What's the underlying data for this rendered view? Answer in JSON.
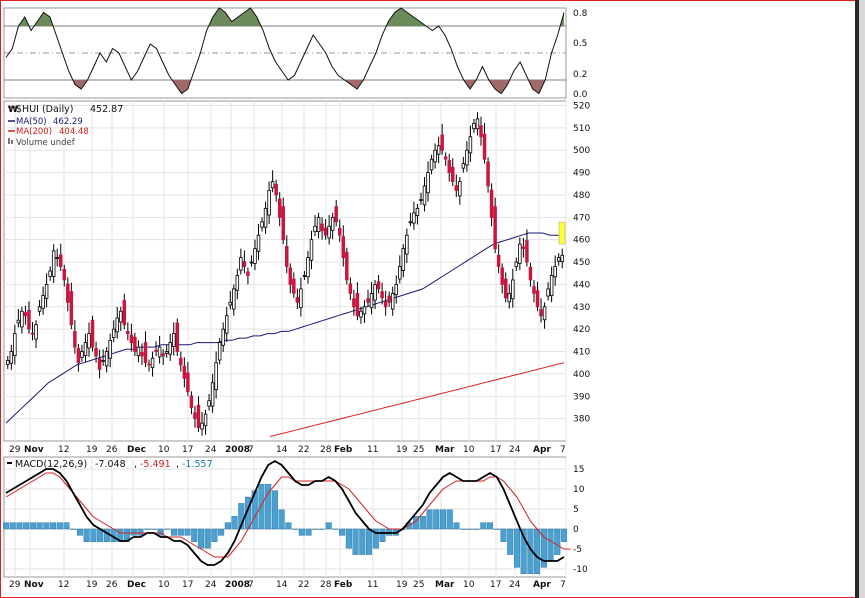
{
  "colors": {
    "down": "#c8173f",
    "up_fill": "#ffffff",
    "ma50": "#1a1a7a",
    "ma200": "#d42020",
    "macd_line": "#000000",
    "signal_line": "#d42020",
    "histogram": "#4aa0d0",
    "rsi_over": "#6b8c5a",
    "rsi_under": "#a06a6a",
    "highlight": "#ffff33"
  },
  "rsi_panel": {
    "y_labels": [
      "0.8",
      "0.5",
      "0.2",
      "0.0"
    ]
  },
  "price_panel": {
    "symbol_label": "$HUI (Daily)",
    "symbol_value": "452.87",
    "ma50_label": "MA(50)",
    "ma50_value": "462.29",
    "ma200_label": "MA(200)",
    "ma200_value": "404.48",
    "volume_label": "Volume undef",
    "y_ticks": [
      380,
      390,
      400,
      410,
      420,
      430,
      440,
      450,
      460,
      470,
      480,
      490,
      500,
      510,
      520
    ]
  },
  "macd_panel": {
    "label": "MACD(12,26,9)",
    "macd_value": "-7.048",
    "signal_value": "-5.491",
    "hist_value": "-1.557",
    "y_ticks": [
      15,
      10,
      5,
      0,
      -5,
      -10
    ]
  },
  "x_axis_labels": [
    {
      "text": "29",
      "bold": false
    },
    {
      "text": "Nov",
      "bold": true
    },
    {
      "text": "12",
      "bold": false
    },
    {
      "text": "19",
      "bold": false
    },
    {
      "text": "26",
      "bold": false
    },
    {
      "text": "Dec",
      "bold": true
    },
    {
      "text": "10",
      "bold": false
    },
    {
      "text": "17",
      "bold": false
    },
    {
      "text": "24",
      "bold": false
    },
    {
      "text": "2008",
      "bold": true
    },
    {
      "text": "7",
      "bold": false
    },
    {
      "text": "14",
      "bold": false
    },
    {
      "text": "22",
      "bold": false
    },
    {
      "text": "28",
      "bold": false
    },
    {
      "text": "Feb",
      "bold": true
    },
    {
      "text": "11",
      "bold": false
    },
    {
      "text": "19",
      "bold": false
    },
    {
      "text": "25",
      "bold": false
    },
    {
      "text": "Mar",
      "bold": true
    },
    {
      "text": "10",
      "bold": false
    },
    {
      "text": "17",
      "bold": false
    },
    {
      "text": "24",
      "bold": false
    },
    {
      "text": "Apr",
      "bold": true
    },
    {
      "text": "7",
      "bold": false
    }
  ],
  "chart_data": {
    "type": "line",
    "title": "$HUI (Daily)",
    "last_price": 452.87,
    "ylim": [
      370,
      522
    ],
    "closes": [
      406,
      410,
      418,
      424,
      428,
      426,
      420,
      418,
      422,
      430,
      435,
      440,
      446,
      455,
      452,
      448,
      442,
      432,
      422,
      412,
      405,
      410,
      414,
      418,
      412,
      408,
      402,
      406,
      410,
      415,
      420,
      425,
      428,
      422,
      418,
      414,
      410,
      412,
      408,
      405,
      404,
      407,
      410,
      412,
      408,
      410,
      414,
      418,
      410,
      404,
      398,
      392,
      385,
      380,
      376,
      378,
      382,
      388,
      396,
      405,
      414,
      420,
      426,
      432,
      438,
      444,
      452,
      448,
      444,
      450,
      456,
      462,
      468,
      474,
      482,
      486,
      480,
      470,
      460,
      448,
      440,
      436,
      432,
      438,
      444,
      452,
      460,
      466,
      470,
      464,
      462,
      466,
      470,
      468,
      462,
      452,
      442,
      436,
      430,
      426,
      428,
      430,
      432,
      436,
      440,
      438,
      434,
      430,
      432,
      436,
      440,
      448,
      456,
      462,
      468,
      472,
      474,
      478,
      484,
      490,
      496,
      500,
      502,
      500,
      496,
      490,
      486,
      482,
      486,
      494,
      500,
      506,
      512,
      514,
      506,
      496,
      484,
      470,
      456,
      448,
      440,
      434,
      436,
      442,
      450,
      458,
      456,
      450,
      442,
      436,
      430,
      426,
      430,
      438,
      444,
      448,
      452,
      453
    ],
    "ma50": [
      378,
      381,
      384,
      387,
      390,
      393,
      396,
      398,
      400,
      402,
      404,
      405,
      406,
      407,
      408,
      409,
      410,
      411,
      411,
      412,
      412,
      412,
      413,
      413,
      413,
      413,
      413,
      414,
      414,
      414,
      414,
      415,
      415,
      416,
      416,
      417,
      417,
      418,
      418,
      419,
      419,
      420,
      421,
      422,
      423,
      424,
      425,
      426,
      427,
      428,
      429,
      430,
      431,
      432,
      433,
      434,
      435,
      436,
      437,
      438,
      440,
      442,
      444,
      446,
      448,
      450,
      452,
      454,
      456,
      458,
      459,
      460,
      461,
      462,
      463,
      463,
      463,
      462,
      462,
      462
    ],
    "ma200": [
      372,
      373,
      374,
      375,
      376,
      377,
      378,
      379,
      380,
      381,
      382,
      383,
      384,
      385,
      386,
      387,
      388,
      389,
      390,
      391,
      392,
      393,
      394,
      395,
      396,
      397,
      398,
      399,
      400,
      401,
      402,
      403,
      404,
      405
    ],
    "macd": [
      9,
      10,
      11,
      12,
      13,
      14,
      15,
      15,
      14,
      12,
      9,
      6,
      3,
      1,
      0,
      -1,
      -2,
      -3,
      -3,
      -2,
      -2,
      -1,
      -1,
      -2,
      -2,
      -3,
      -3,
      -4,
      -6,
      -8,
      -9,
      -9,
      -8,
      -6,
      -3,
      1,
      5,
      9,
      13,
      16,
      17,
      16,
      14,
      12,
      11,
      11,
      12,
      12,
      13,
      12,
      10,
      7,
      4,
      2,
      0,
      -1,
      -1,
      -1,
      -1,
      0,
      2,
      4,
      6,
      9,
      11,
      13,
      14,
      13,
      12,
      12,
      12,
      13,
      14,
      13,
      10,
      6,
      2,
      -2,
      -5,
      -7,
      -8,
      -8,
      -8,
      -7
    ],
    "signal": [
      8,
      9,
      10,
      11,
      12,
      13,
      14,
      14,
      13,
      11,
      9,
      7,
      5,
      3,
      2,
      1,
      0,
      -1,
      -1,
      -1,
      -1,
      -1,
      -1,
      -1,
      -2,
      -2,
      -2,
      -3,
      -4,
      -5,
      -6,
      -7,
      -7,
      -7,
      -5,
      -3,
      0,
      3,
      6,
      9,
      11,
      13,
      13,
      12,
      12,
      12,
      12,
      12,
      12,
      12,
      11,
      10,
      8,
      6,
      4,
      2,
      1,
      0,
      0,
      0,
      1,
      2,
      4,
      6,
      8,
      10,
      11,
      12,
      12,
      12,
      12,
      12,
      13,
      13,
      12,
      10,
      8,
      5,
      2,
      0,
      -2,
      -3,
      -4,
      -5,
      -5
    ],
    "rsi": [
      0.45,
      0.55,
      0.8,
      0.9,
      0.75,
      0.85,
      0.95,
      0.9,
      0.7,
      0.5,
      0.3,
      0.15,
      0.1,
      0.2,
      0.35,
      0.5,
      0.4,
      0.55,
      0.5,
      0.35,
      0.2,
      0.3,
      0.45,
      0.6,
      0.55,
      0.4,
      0.25,
      0.15,
      0.05,
      0.1,
      0.3,
      0.5,
      0.75,
      0.9,
      1.0,
      0.95,
      0.85,
      0.9,
      0.95,
      1.0,
      0.9,
      0.75,
      0.55,
      0.4,
      0.3,
      0.2,
      0.25,
      0.4,
      0.55,
      0.7,
      0.6,
      0.5,
      0.35,
      0.25,
      0.2,
      0.15,
      0.1,
      0.2,
      0.35,
      0.5,
      0.7,
      0.85,
      0.95,
      1.0,
      0.95,
      0.9,
      0.85,
      0.8,
      0.75,
      0.8,
      0.7,
      0.55,
      0.35,
      0.2,
      0.1,
      0.2,
      0.35,
      0.2,
      0.1,
      0.05,
      0.15,
      0.3,
      0.4,
      0.25,
      0.1,
      0.05,
      0.2,
      0.5,
      0.7,
      0.95
    ]
  }
}
